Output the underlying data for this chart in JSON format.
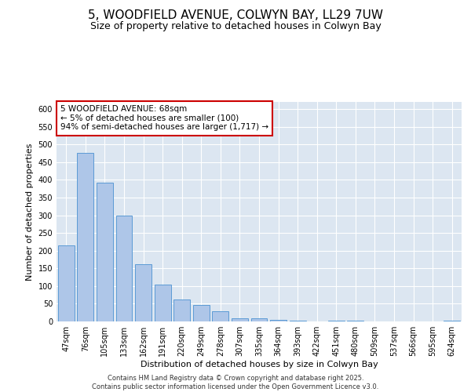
{
  "title": "5, WOODFIELD AVENUE, COLWYN BAY, LL29 7UW",
  "subtitle": "Size of property relative to detached houses in Colwyn Bay",
  "xlabel": "Distribution of detached houses by size in Colwyn Bay",
  "ylabel": "Number of detached properties",
  "categories": [
    "47sqm",
    "76sqm",
    "105sqm",
    "133sqm",
    "162sqm",
    "191sqm",
    "220sqm",
    "249sqm",
    "278sqm",
    "307sqm",
    "335sqm",
    "364sqm",
    "393sqm",
    "422sqm",
    "451sqm",
    "480sqm",
    "509sqm",
    "537sqm",
    "566sqm",
    "595sqm",
    "624sqm"
  ],
  "values": [
    215,
    477,
    393,
    300,
    162,
    104,
    63,
    46,
    29,
    9,
    9,
    5,
    2,
    0,
    2,
    2,
    0,
    0,
    0,
    0,
    2
  ],
  "bar_color": "#aec6e8",
  "bar_edge_color": "#5b9bd5",
  "annotation_text": "5 WOODFIELD AVENUE: 68sqm\n← 5% of detached houses are smaller (100)\n94% of semi-detached houses are larger (1,717) →",
  "annotation_box_edge": "#cc0000",
  "ylim": [
    0,
    620
  ],
  "yticks": [
    0,
    50,
    100,
    150,
    200,
    250,
    300,
    350,
    400,
    450,
    500,
    550,
    600
  ],
  "plot_bg_color": "#dce6f1",
  "footer": "Contains HM Land Registry data © Crown copyright and database right 2025.\nContains public sector information licensed under the Open Government Licence v3.0.",
  "title_fontsize": 11,
  "subtitle_fontsize": 9,
  "label_fontsize": 8,
  "tick_fontsize": 7,
  "annotation_fontsize": 7.5,
  "footer_fontsize": 6
}
